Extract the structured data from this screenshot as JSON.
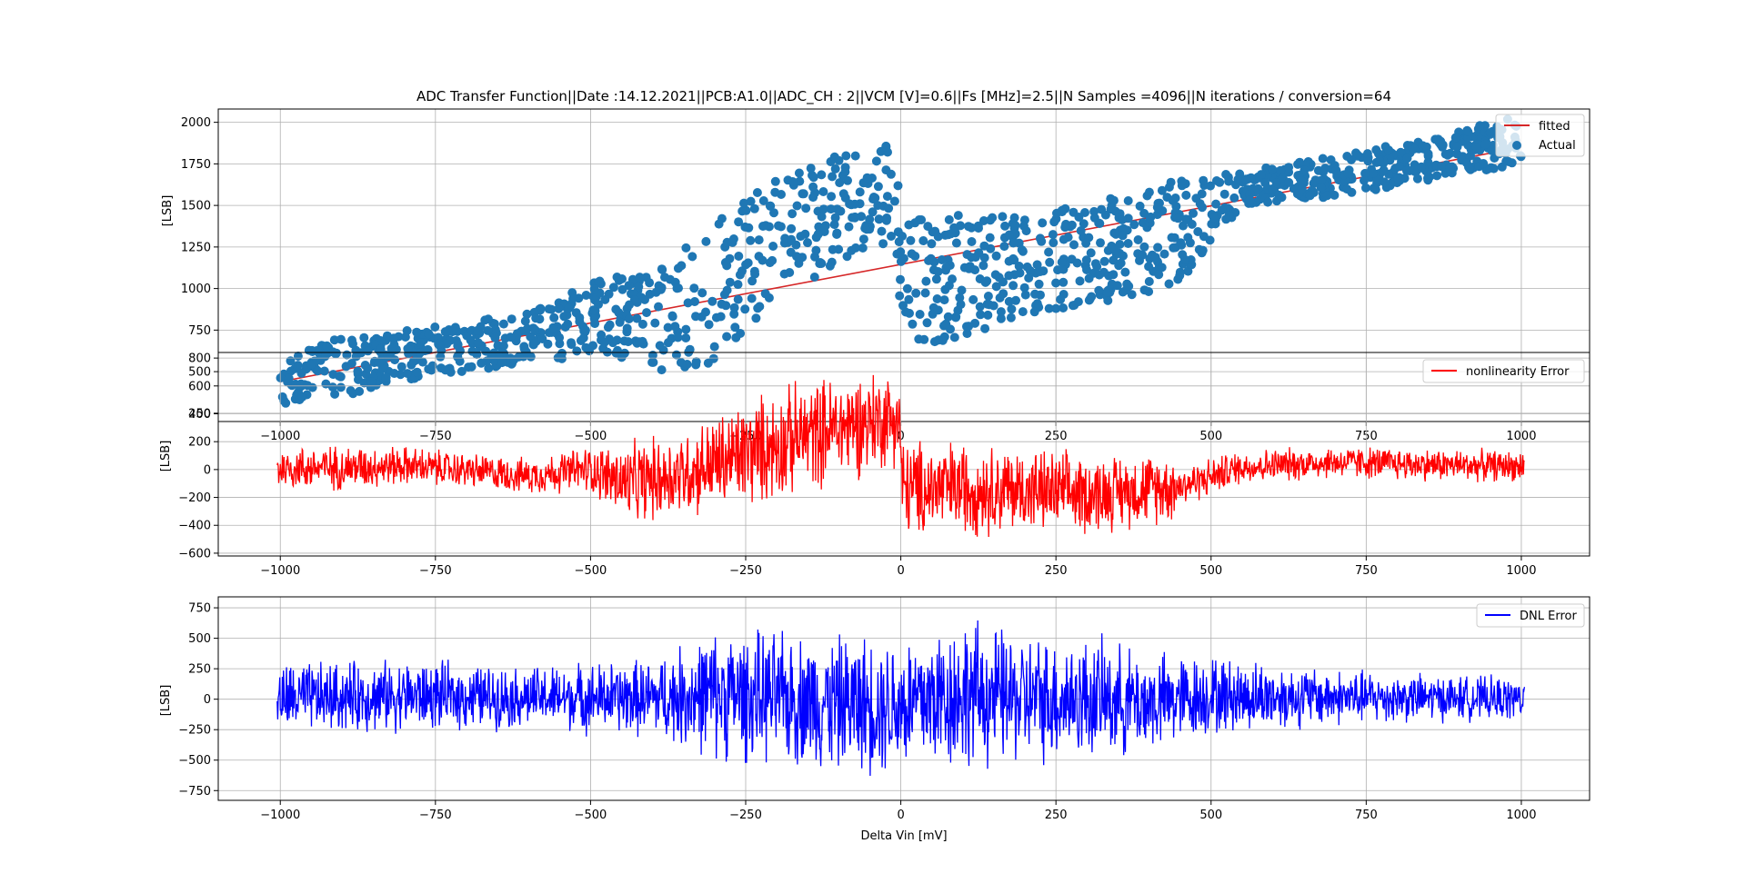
{
  "chart_data": [
    {
      "type": "scatter",
      "title": "ADC Transfer Function||Date :14.12.2021||PCB:A1.0||ADC_CH : 2||VCM [V]=0.6||Fs [MHz]=2.5||N Samples =4096||N iterations / conversion=64",
      "xlabel": "",
      "ylabel": "[LSB]",
      "xlim": [
        -1100,
        1110
      ],
      "ylim": [
        200,
        2080
      ],
      "x_ticks": [
        -1000,
        -750,
        -500,
        -250,
        0,
        250,
        500,
        750,
        1000
      ],
      "x_tick_labels": [
        "−1000",
        "−750",
        "−500",
        "−250",
        "0",
        "250",
        "500",
        "750",
        "1000"
      ],
      "y_ticks": [
        250,
        500,
        750,
        1000,
        1250,
        1500,
        1750,
        2000
      ],
      "y_tick_labels": [
        "250",
        "500",
        "750",
        "1000",
        "1250",
        "1500",
        "1750",
        "2000"
      ],
      "grid": true,
      "legend_position": "top-right",
      "series": [
        {
          "name": "fitted",
          "kind": "line",
          "color": "#d62728",
          "x": [
            -1000,
            1000
          ],
          "y": [
            440,
            1850
          ]
        },
        {
          "name": "Actual",
          "kind": "scatter-band",
          "color": "#1f77b4",
          "x": [
            -1000,
            -900,
            -800,
            -700,
            -600,
            -500,
            -400,
            -300,
            -200,
            -100,
            -10,
            0,
            100,
            200,
            300,
            440,
            550,
            700,
            850,
            1000
          ],
          "ymin": [
            300,
            350,
            450,
            500,
            550,
            600,
            500,
            550,
            900,
            1150,
            1300,
            650,
            700,
            850,
            900,
            1000,
            1500,
            1550,
            1650,
            1750
          ],
          "ymax": [
            650,
            700,
            750,
            800,
            850,
            1050,
            1100,
            1400,
            1700,
            1800,
            1900,
            1400,
            1450,
            1450,
            1500,
            1650,
            1700,
            1800,
            1900,
            2050
          ]
        }
      ]
    },
    {
      "type": "line",
      "title": "",
      "xlabel": "",
      "ylabel": "[LSB]",
      "xlim": [
        -1100,
        1110
      ],
      "ylim": [
        -620,
        840
      ],
      "x_ticks": [
        -1000,
        -750,
        -500,
        -250,
        0,
        250,
        500,
        750,
        1000
      ],
      "x_tick_labels": [
        "−1000",
        "−750",
        "−500",
        "−250",
        "0",
        "250",
        "500",
        "750",
        "1000"
      ],
      "y_ticks": [
        -600,
        -400,
        -200,
        0,
        200,
        400,
        600,
        800
      ],
      "y_tick_labels": [
        "−600",
        "−400",
        "−200",
        "0",
        "200",
        "400",
        "600",
        "800"
      ],
      "grid": true,
      "legend_position": "top-right",
      "series": [
        {
          "name": "nonlinearity Error",
          "kind": "noise-band",
          "color": "#ff0000",
          "x": [
            -1005,
            -900,
            -800,
            -700,
            -600,
            -500,
            -440,
            -350,
            -250,
            -150,
            -50,
            -2,
            2,
            100,
            200,
            300,
            440,
            446,
            550,
            700,
            850,
            1005
          ],
          "lower": [
            -170,
            -170,
            -130,
            -150,
            -190,
            -190,
            -440,
            -380,
            -340,
            -200,
            -80,
            0,
            -540,
            -520,
            -500,
            -500,
            -400,
            -300,
            -120,
            -80,
            -100,
            -100
          ],
          "upper": [
            190,
            200,
            190,
            140,
            100,
            200,
            230,
            330,
            560,
            700,
            780,
            750,
            270,
            260,
            200,
            150,
            160,
            50,
            160,
            190,
            170,
            150
          ]
        }
      ]
    },
    {
      "type": "line",
      "title": "",
      "xlabel": "Delta Vin [mV]",
      "ylabel": "[LSB]",
      "xlim": [
        -1100,
        1110
      ],
      "ylim": [
        -830,
        840
      ],
      "x_ticks": [
        -1000,
        -750,
        -500,
        -250,
        0,
        250,
        500,
        750,
        1000
      ],
      "x_tick_labels": [
        "−1000",
        "−750",
        "−500",
        "−250",
        "0",
        "250",
        "500",
        "750",
        "1000"
      ],
      "y_ticks": [
        -750,
        -500,
        -250,
        0,
        250,
        500,
        750
      ],
      "y_tick_labels": [
        "−750",
        "−500",
        "−250",
        "0",
        "250",
        "500",
        "750"
      ],
      "grid": true,
      "legend_position": "top-right",
      "series": [
        {
          "name": "DNL Error",
          "kind": "noise-band",
          "color": "#0000ff",
          "x": [
            -1005,
            -800,
            -600,
            -400,
            -300,
            -200,
            -100,
            0,
            100,
            200,
            300,
            400,
            500,
            700,
            900,
            1005
          ],
          "lower": [
            -330,
            -300,
            -270,
            -360,
            -560,
            -600,
            -660,
            -700,
            -660,
            -600,
            -560,
            -500,
            -340,
            -250,
            -200,
            -200
          ],
          "upper": [
            340,
            360,
            300,
            380,
            640,
            620,
            600,
            620,
            760,
            600,
            580,
            440,
            400,
            280,
            220,
            200
          ]
        }
      ]
    }
  ]
}
